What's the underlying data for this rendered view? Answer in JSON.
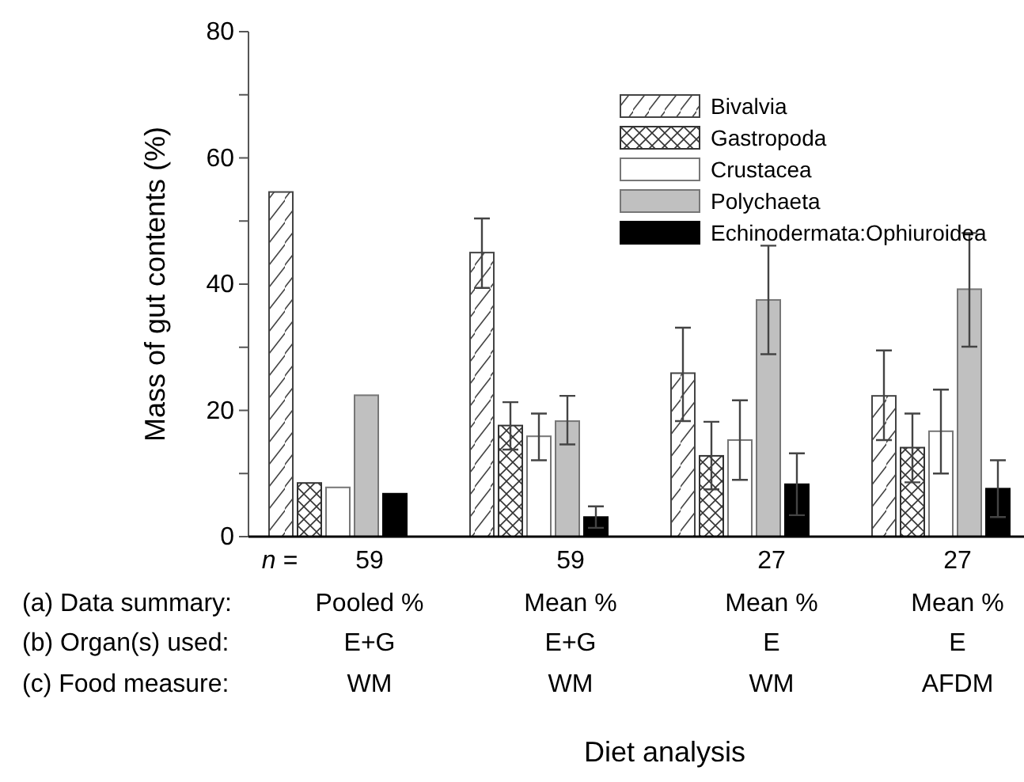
{
  "chart_data": {
    "type": "bar",
    "ylabel": "Mass of gut contents (%)",
    "xlabel": "Diet analysis",
    "categories": [
      "59\nPooled %\nE+G\nWM",
      "59\nMean %\nE+G\nWM",
      "27\nMean %\nE\nWM",
      "27\nMean %\nE\nAFDM"
    ],
    "annotations": [
      "n =",
      "(a) Data summary:",
      "(b) Organ(s) used:",
      "(c) Food measure:"
    ],
    "ylim": [
      0,
      80
    ],
    "yticks": [
      0,
      {
        "value": 10,
        "label": null
      },
      20,
      {
        "value": 30,
        "label": null
      },
      40,
      {
        "value": 50,
        "label": null
      },
      60,
      {
        "value": 70,
        "label": null
      },
      80
    ],
    "legend": "top right",
    "series": [
      {
        "name": "Bivalvia",
        "color": "#444444",
        "values": [
          54.6,
          45.0,
          25.9,
          22.3
        ],
        "errors": [
          null,
          [
            39.4,
            50.4
          ],
          [
            18.3,
            33.1
          ],
          [
            15.3,
            29.5
          ]
        ]
      },
      {
        "name": "Gastropoda",
        "color": "#333333",
        "values": [
          8.5,
          17.6,
          12.8,
          14.1
        ],
        "errors": [
          null,
          [
            13.8,
            21.3
          ],
          [
            7.5,
            18.2
          ],
          [
            8.6,
            19.5
          ]
        ]
      },
      {
        "name": "Crustacea",
        "color": "#ffffff",
        "values": [
          7.8,
          15.9,
          15.3,
          16.7
        ],
        "errors": [
          null,
          [
            12.1,
            19.5
          ],
          [
            9.0,
            21.6
          ],
          [
            10.0,
            23.3
          ]
        ]
      },
      {
        "name": "Polychaeta",
        "color": "#c0c0c0",
        "values": [
          22.4,
          18.3,
          37.5,
          39.2
        ],
        "errors": [
          null,
          [
            14.6,
            22.3
          ],
          [
            28.9,
            46.1
          ],
          [
            30.1,
            48.1
          ]
        ]
      },
      {
        "name": "Echinodermata:Ophiuroidea",
        "color": "#000000",
        "values": [
          6.8,
          3.1,
          8.3,
          7.6
        ],
        "errors": [
          null,
          [
            1.4,
            4.8
          ],
          [
            3.4,
            13.2
          ],
          [
            3.1,
            12.1
          ]
        ]
      }
    ]
  }
}
